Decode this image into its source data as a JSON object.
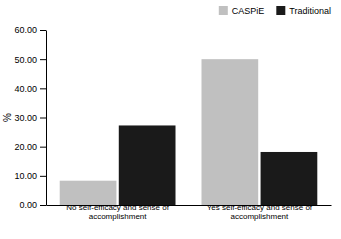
{
  "chart_data": {
    "type": "bar",
    "categories": [
      "No self-efficacy and sense of\naccomplishment",
      "Yes self-efficacy and sense of\naccomplishment"
    ],
    "series": [
      {
        "name": "CASPiE",
        "color": "#c0c0c0",
        "values": [
          8.33,
          50.0
        ]
      },
      {
        "name": "Traditional",
        "color": "#1a1a1a",
        "values": [
          27.27,
          18.18
        ]
      }
    ],
    "ylabel": "%",
    "ylim": [
      0,
      60
    ],
    "yticks": [
      {
        "value": 0,
        "label": "0.00"
      },
      {
        "value": 10,
        "label": "10.00"
      },
      {
        "value": 20,
        "label": "20.00"
      },
      {
        "value": 30,
        "label": "30.00"
      },
      {
        "value": 40,
        "label": "40.00"
      },
      {
        "value": 50,
        "label": "50.00"
      },
      {
        "value": 60,
        "label": "60.00"
      }
    ],
    "legend": "upper right"
  }
}
